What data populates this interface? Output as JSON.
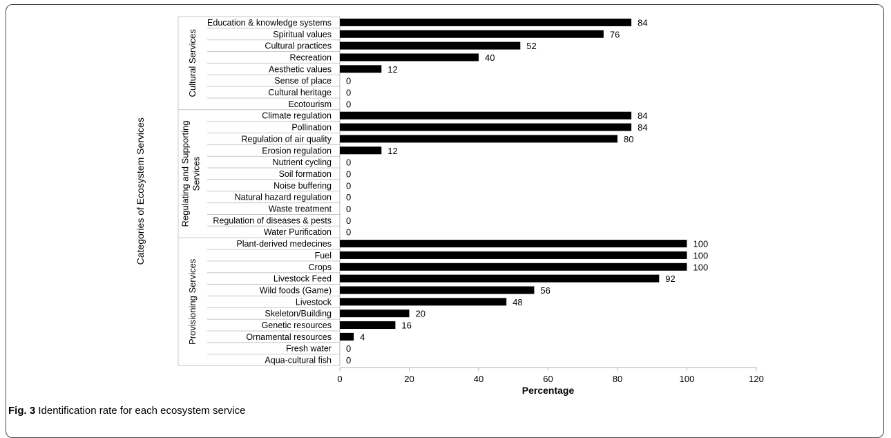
{
  "caption": {
    "label": "Fig. 3",
    "text": "Identification rate for each ecosystem service"
  },
  "chart_data": {
    "type": "bar",
    "orientation": "horizontal",
    "title": "",
    "xlabel": "Percentage",
    "ylabel": "Categories of Ecosystem Services",
    "xlim": [
      0,
      120
    ],
    "xticks": [
      0,
      20,
      40,
      60,
      80,
      100,
      120
    ],
    "grid": false,
    "bar_color": "#000000",
    "groups": [
      {
        "name": "Cultural Services",
        "items": [
          {
            "label": "Education & knowledge systems",
            "value": 84
          },
          {
            "label": "Spiritual values",
            "value": 76
          },
          {
            "label": "Cultural practices",
            "value": 52
          },
          {
            "label": "Recreation",
            "value": 40
          },
          {
            "label": "Aesthetic values",
            "value": 12
          },
          {
            "label": "Sense of place",
            "value": 0
          },
          {
            "label": "Cultural heritage",
            "value": 0
          },
          {
            "label": "Ecotourism",
            "value": 0
          }
        ]
      },
      {
        "name": "Regulating and Supporting Services",
        "items": [
          {
            "label": "Climate regulation",
            "value": 84
          },
          {
            "label": "Pollination",
            "value": 84
          },
          {
            "label": "Regulation of air quality",
            "value": 80
          },
          {
            "label": "Erosion regulation",
            "value": 12
          },
          {
            "label": "Nutrient cycling",
            "value": 0
          },
          {
            "label": "Soil formation",
            "value": 0
          },
          {
            "label": "Noise buffering",
            "value": 0
          },
          {
            "label": "Natural hazard regulation",
            "value": 0
          },
          {
            "label": "Waste treatment",
            "value": 0
          },
          {
            "label": "Regulation of diseases & pests",
            "value": 0
          },
          {
            "label": "Water Purification",
            "value": 0
          }
        ]
      },
      {
        "name": "Provisioning  Services",
        "items": [
          {
            "label": "Plant-derived medecines",
            "value": 100
          },
          {
            "label": "Fuel",
            "value": 100
          },
          {
            "label": "Crops",
            "value": 100
          },
          {
            "label": "Livestock Feed",
            "value": 92
          },
          {
            "label": "Wild foods (Game)",
            "value": 56
          },
          {
            "label": "Livestock",
            "value": 48
          },
          {
            "label": "Skeleton/Building",
            "value": 20
          },
          {
            "label": "Genetic resources",
            "value": 16
          },
          {
            "label": "Ornamental resources",
            "value": 4
          },
          {
            "label": "Fresh water",
            "value": 0
          },
          {
            "label": "Aqua-cultural fish",
            "value": 0
          }
        ]
      }
    ]
  }
}
